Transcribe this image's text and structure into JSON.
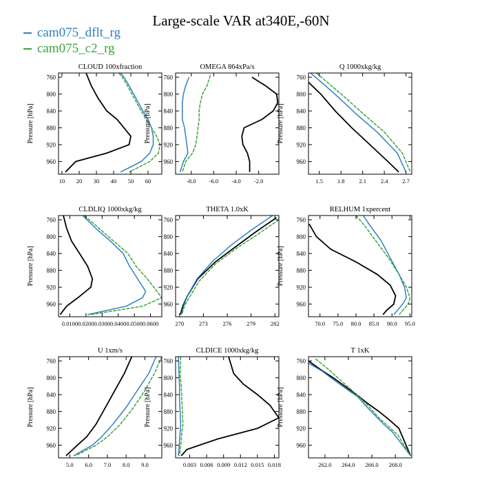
{
  "figure": {
    "title": "Large-scale VAR at340E,-60N",
    "legend": [
      {
        "label": "cam075_dflt_rg",
        "color": "#2f7fc0"
      },
      {
        "label": "cam075_c2_rg",
        "color": "#3aa33a"
      }
    ],
    "reference_color": "#000000"
  },
  "chart_data": [
    {
      "type": "line",
      "title": "CLOUD  100xfraction",
      "xlabel": "",
      "ylabel": "Pressure [hPa]",
      "xlim": [
        8,
        68
      ],
      "ylim": [
        990,
        750
      ],
      "xticks": [
        "10",
        "20",
        "30",
        "40",
        "50",
        "60"
      ],
      "xtick_values": [
        10,
        20,
        30,
        40,
        50,
        60
      ],
      "yticks": [
        "760",
        "800",
        "840",
        "880",
        "920",
        "960"
      ],
      "ytick_values": [
        760,
        800,
        840,
        880,
        920,
        960
      ],
      "series": [
        {
          "name": "reference",
          "color": "#000000",
          "x": [
            24,
            25,
            27,
            31,
            36,
            42,
            46,
            50,
            49,
            36,
            18,
            12
          ],
          "y": [
            750,
            760,
            780,
            810,
            840,
            860,
            880,
            900,
            920,
            940,
            960,
            985
          ]
        },
        {
          "name": "cam075_dflt_rg",
          "color": "#2f7fc0",
          "x": [
            44,
            46,
            49,
            53,
            57,
            60,
            62,
            63,
            63,
            61,
            56,
            44
          ],
          "y": [
            750,
            760,
            780,
            810,
            840,
            860,
            880,
            900,
            920,
            940,
            960,
            985
          ]
        },
        {
          "name": "cam075_c2_rg",
          "color": "#3aa33a",
          "x": [
            43,
            45,
            48,
            52,
            56,
            59,
            62,
            65,
            67,
            66,
            61,
            49
          ],
          "y": [
            750,
            760,
            780,
            810,
            840,
            860,
            880,
            900,
            920,
            940,
            960,
            985
          ]
        }
      ]
    },
    {
      "type": "line",
      "title": "OMEGA  864xPa/s",
      "xlabel": "",
      "ylabel": "Pressure [hPa]",
      "xlim": [
        -9.4,
        -0.2
      ],
      "ylim": [
        990,
        750
      ],
      "xticks": [
        "-8.0",
        "-6.0",
        "-4.0",
        "-2.0"
      ],
      "xtick_values": [
        -8,
        -6,
        -4,
        -2
      ],
      "yticks": [
        "760",
        "800",
        "840",
        "880",
        "920",
        "960"
      ],
      "ytick_values": [
        760,
        800,
        840,
        880,
        920,
        960
      ],
      "series": [
        {
          "name": "reference",
          "color": "#000000",
          "x": [
            -2.6,
            -1.4,
            -0.4,
            -0.3,
            -0.7,
            -1.7,
            -3.3,
            -3.5,
            -3.4,
            -3.0,
            -2.8,
            -2.8
          ],
          "y": [
            760,
            780,
            800,
            820,
            840,
            860,
            880,
            900,
            920,
            940,
            960,
            985
          ]
        },
        {
          "name": "cam075_dflt_rg",
          "color": "#2f7fc0",
          "x": [
            -8.2,
            -8.5,
            -8.7,
            -8.8,
            -8.8,
            -8.8,
            -8.6,
            -8.5,
            -8.4,
            -8.3,
            -8.7,
            -9.0
          ],
          "y": [
            760,
            780,
            800,
            820,
            840,
            860,
            880,
            900,
            920,
            940,
            960,
            985
          ]
        },
        {
          "name": "cam075_c2_rg",
          "color": "#3aa33a",
          "x": [
            -6.3,
            -6.6,
            -7.0,
            -7.2,
            -7.3,
            -7.3,
            -7.4,
            -7.5,
            -7.6,
            -7.9,
            -8.5,
            -8.8
          ],
          "y": [
            755,
            780,
            800,
            820,
            840,
            860,
            880,
            900,
            920,
            940,
            960,
            985
          ]
        }
      ]
    },
    {
      "type": "line",
      "title": "Q  1000xkg/kg",
      "xlabel": "",
      "ylabel": "Pressure [hPa]",
      "xlim": [
        1.35,
        2.78
      ],
      "ylim": [
        990,
        750
      ],
      "xticks": [
        "1.5",
        "1.8",
        "2.1",
        "2.4",
        "2.7"
      ],
      "xtick_values": [
        1.5,
        1.8,
        2.1,
        2.4,
        2.7
      ],
      "yticks": [
        "760",
        "800",
        "840",
        "880",
        "920",
        "960"
      ],
      "ytick_values": [
        760,
        800,
        840,
        880,
        920,
        960
      ],
      "series": [
        {
          "name": "reference",
          "color": "#000000",
          "x": [
            1.35,
            1.52,
            1.72,
            1.95,
            2.2,
            2.45,
            2.6
          ],
          "y": [
            772,
            800,
            840,
            880,
            920,
            960,
            985
          ]
        },
        {
          "name": "cam075_dflt_rg",
          "color": "#2f7fc0",
          "x": [
            1.38,
            1.55,
            1.78,
            2.03,
            2.3,
            2.58,
            2.7
          ],
          "y": [
            750,
            775,
            810,
            850,
            890,
            940,
            985
          ]
        },
        {
          "name": "cam075_c2_rg",
          "color": "#3aa33a",
          "x": [
            1.46,
            1.63,
            1.87,
            2.13,
            2.4,
            2.65,
            2.76
          ],
          "y": [
            750,
            775,
            810,
            850,
            890,
            940,
            985
          ]
        }
      ]
    },
    {
      "type": "line",
      "title": "CLDLIQ  1000xkg/kg",
      "xlabel": "",
      "ylabel": "Pressure [hPa]",
      "xlim": [
        0.003,
        0.067
      ],
      "ylim": [
        990,
        750
      ],
      "xticks": [
        "0.0100",
        "0.0200",
        "0.0300",
        "0.0400",
        "0.0500",
        "0.0600"
      ],
      "xtick_values": [
        0.01,
        0.02,
        0.03,
        0.04,
        0.05,
        0.06
      ],
      "yticks": [
        "760",
        "800",
        "840",
        "880",
        "920",
        "960"
      ],
      "ytick_values": [
        760,
        800,
        840,
        880,
        920,
        960
      ],
      "series": [
        {
          "name": "reference",
          "color": "#000000",
          "x": [
            0.006,
            0.008,
            0.011,
            0.016,
            0.021,
            0.024,
            0.023,
            0.015,
            0.008,
            0.004
          ],
          "y": [
            750,
            780,
            810,
            840,
            870,
            900,
            920,
            945,
            965,
            985
          ]
        },
        {
          "name": "cam075_dflt_rg",
          "color": "#2f7fc0",
          "x": [
            0.018,
            0.026,
            0.035,
            0.043,
            0.047,
            0.052,
            0.057,
            0.055,
            0.045,
            0.021
          ],
          "y": [
            750,
            780,
            810,
            840,
            870,
            900,
            930,
            945,
            965,
            985
          ]
        },
        {
          "name": "cam075_c2_rg",
          "color": "#3aa33a",
          "x": [
            0.019,
            0.028,
            0.037,
            0.046,
            0.051,
            0.058,
            0.064,
            0.067,
            0.055,
            0.023
          ],
          "y": [
            750,
            780,
            810,
            840,
            870,
            900,
            930,
            945,
            965,
            985
          ]
        }
      ]
    },
    {
      "type": "line",
      "title": "THETA  1.0xK",
      "xlabel": "",
      "ylabel": "",
      "xlim": [
        269.5,
        282.5
      ],
      "ylim": [
        990,
        750
      ],
      "xticks": [
        "270",
        "273",
        "276",
        "279",
        "282"
      ],
      "xtick_values": [
        270,
        273,
        276,
        279,
        282
      ],
      "yticks": [
        "760",
        "800",
        "840",
        "880",
        "920",
        "960"
      ],
      "ytick_values": [
        760,
        800,
        840,
        880,
        920,
        960
      ],
      "series": [
        {
          "name": "reference",
          "color": "#000000",
          "x": [
            282.2,
            279.5,
            277.0,
            274.5,
            272.3,
            271.0,
            270.4,
            270.1
          ],
          "y": [
            755,
            790,
            825,
            860,
            900,
            940,
            965,
            985
          ]
        },
        {
          "name": "cam075_dflt_rg",
          "color": "#2f7fc0",
          "x": [
            281.7,
            279.0,
            276.5,
            274.2,
            272.2,
            271.0,
            270.5,
            270.2
          ],
          "y": [
            750,
            785,
            820,
            858,
            900,
            940,
            965,
            985
          ]
        },
        {
          "name": "cam075_c2_rg",
          "color": "#3aa33a",
          "x": [
            282.5,
            279.8,
            277.0,
            274.5,
            272.5,
            271.2,
            270.6,
            270.3
          ],
          "y": [
            760,
            795,
            830,
            865,
            905,
            945,
            965,
            985
          ]
        }
      ]
    },
    {
      "type": "line",
      "title": "RELHUM  1xpercent",
      "xlabel": "",
      "ylabel": "Pressure [hPa]",
      "xlim": [
        66.8,
        95.5
      ],
      "ylim": [
        990,
        750
      ],
      "xticks": [
        "70.0",
        "75.0",
        "80.0",
        "85.0",
        "90.0",
        "95.0"
      ],
      "xtick_values": [
        70,
        75,
        80,
        85,
        90,
        95
      ],
      "yticks": [
        "760",
        "800",
        "840",
        "880",
        "920",
        "960"
      ],
      "ytick_values": [
        760,
        800,
        840,
        880,
        920,
        960
      ],
      "series": [
        {
          "name": "reference",
          "color": "#000000",
          "x": [
            67,
            69,
            73,
            80,
            86,
            89.5,
            91,
            90.5,
            88.5,
            87.5
          ],
          "y": [
            770,
            800,
            830,
            860,
            890,
            915,
            940,
            960,
            975,
            985
          ]
        },
        {
          "name": "cam075_dflt_rg",
          "color": "#2f7fc0",
          "x": [
            82,
            84,
            87,
            89.5,
            92,
            93.5,
            94,
            93,
            91.5,
            90.5
          ],
          "y": [
            750,
            775,
            810,
            850,
            890,
            920,
            945,
            960,
            975,
            985
          ]
        },
        {
          "name": "cam075_c2_rg",
          "color": "#3aa33a",
          "x": [
            80,
            82.5,
            85.5,
            89,
            92,
            94,
            95,
            94.5,
            93,
            92
          ],
          "y": [
            750,
            775,
            810,
            850,
            890,
            920,
            945,
            960,
            975,
            985
          ]
        }
      ]
    },
    {
      "type": "line",
      "title": "U  1xm/s",
      "xlabel": "",
      "ylabel": "Pressure [hPa]",
      "xlim": [
        4.4,
        9.9
      ],
      "ylim": [
        990,
        750
      ],
      "xticks": [
        "5.0",
        "6.0",
        "7.0",
        "8.0",
        "9.0"
      ],
      "xtick_values": [
        5,
        6,
        7,
        8,
        9
      ],
      "yticks": [
        "760",
        "800",
        "840",
        "880",
        "920",
        "960"
      ],
      "ytick_values": [
        760,
        800,
        840,
        880,
        920,
        960
      ],
      "series": [
        {
          "name": "reference",
          "color": "#000000",
          "x": [
            8.3,
            7.9,
            7.4,
            6.9,
            6.4,
            5.9,
            5.4,
            4.8
          ],
          "y": [
            750,
            790,
            830,
            870,
            910,
            940,
            960,
            985
          ]
        },
        {
          "name": "cam075_dflt_rg",
          "color": "#2f7fc0",
          "x": [
            9.6,
            9.2,
            8.6,
            8.0,
            7.3,
            6.7,
            6.2,
            5.2
          ],
          "y": [
            750,
            790,
            830,
            870,
            910,
            940,
            960,
            985
          ]
        },
        {
          "name": "cam075_c2_rg",
          "color": "#3aa33a",
          "x": [
            9.9,
            9.5,
            9.0,
            8.4,
            7.7,
            7.0,
            6.4,
            5.3
          ],
          "y": [
            750,
            790,
            830,
            870,
            910,
            940,
            960,
            985
          ]
        }
      ]
    },
    {
      "type": "line",
      "title": "CLDICE  1000xkg/kg",
      "xlabel": "",
      "ylabel": "Pressure [hPa]",
      "xlim": [
        0.0005,
        0.0188
      ],
      "ylim": [
        990,
        750
      ],
      "xticks": [
        "0.003",
        "0.006",
        "0.009",
        "0.012",
        "0.015",
        "0.018"
      ],
      "xtick_values": [
        0.003,
        0.006,
        0.009,
        0.012,
        0.015,
        0.018
      ],
      "yticks": [
        "760",
        "800",
        "840",
        "880",
        "920",
        "960"
      ],
      "ytick_values": [
        760,
        800,
        840,
        880,
        920,
        960
      ],
      "series": [
        {
          "name": "reference",
          "color": "#000000",
          "x": [
            0.0099,
            0.0108,
            0.0125,
            0.015,
            0.0172,
            0.0188,
            0.015,
            0.008,
            0.0025,
            0.0015
          ],
          "y": [
            750,
            790,
            815,
            840,
            865,
            895,
            920,
            945,
            970,
            985
          ]
        },
        {
          "name": "cam075_dflt_rg",
          "color": "#2f7fc0",
          "x": [
            0.001,
            0.0011,
            0.0012,
            0.0012,
            0.0013,
            0.0014,
            0.0013,
            0.0012,
            0.0011,
            0.001
          ],
          "y": [
            750,
            790,
            820,
            850,
            880,
            910,
            930,
            950,
            970,
            985
          ]
        },
        {
          "name": "cam075_c2_rg",
          "color": "#3aa33a",
          "x": [
            0.0014,
            0.0013,
            0.0015,
            0.0016,
            0.0017,
            0.0018,
            0.0016,
            0.0015,
            0.0013,
            0.0012
          ],
          "y": [
            750,
            790,
            820,
            850,
            880,
            910,
            930,
            950,
            970,
            985
          ]
        }
      ]
    },
    {
      "type": "line",
      "title": "T  1xK",
      "xlabel": "",
      "ylabel": "Pressure [hPa]",
      "xlim": [
        260.6,
        269.4
      ],
      "ylim": [
        990,
        750
      ],
      "xticks": [
        "262.0",
        "264.0",
        "266.0",
        "268.0"
      ],
      "xtick_values": [
        262,
        264,
        266,
        268
      ],
      "yticks": [
        "760",
        "800",
        "840",
        "880",
        "920",
        "960"
      ],
      "ytick_values": [
        760,
        800,
        840,
        880,
        920,
        960
      ],
      "series": [
        {
          "name": "reference",
          "color": "#000000",
          "x": [
            260.6,
            261.6,
            262.7,
            263.7,
            264.7,
            265.6,
            266.6,
            267.5,
            268.3,
            269.3
          ],
          "y": [
            760,
            780,
            800,
            820,
            840,
            860,
            880,
            900,
            920,
            985
          ]
        },
        {
          "name": "cam075_dflt_rg",
          "color": "#2f7fc0",
          "x": [
            260.6,
            261.8,
            263.0,
            264.0,
            264.8,
            265.6,
            266.3,
            267.0,
            267.8,
            269.3
          ],
          "y": [
            765,
            785,
            810,
            830,
            845,
            870,
            890,
            910,
            930,
            985
          ]
        },
        {
          "name": "cam075_c2_rg",
          "color": "#3aa33a",
          "x": [
            261.2,
            262.3,
            263.3,
            264.1,
            264.9,
            265.8,
            266.6,
            267.4,
            268.2,
            269.3
          ],
          "y": [
            755,
            780,
            805,
            825,
            845,
            870,
            895,
            915,
            935,
            985
          ]
        }
      ]
    }
  ]
}
